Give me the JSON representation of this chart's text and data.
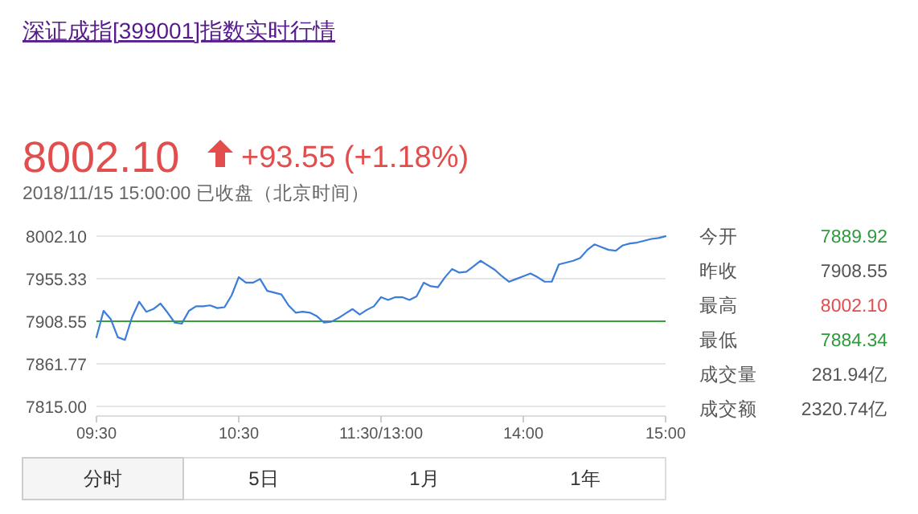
{
  "chart_data": {
    "type": "line",
    "title": "深证成指[399001]指数实时行情",
    "subtitle": "8002.10 +93.55 (+1.18%)",
    "annotations": [
      "今开 7889.92",
      "昨收 7908.55",
      "最高 8002.10",
      "最低 7884.34",
      "成交量 281.94亿",
      "成交额 2320.74亿",
      "2018/11/15 15:00:00   已收盘（北京时间）",
      "分时",
      "5日",
      "1月",
      "1年"
    ],
    "categories": [
      "09:30",
      null,
      null,
      null,
      null,
      null,
      null,
      null,
      null,
      null,
      null,
      null,
      null,
      null,
      null,
      null,
      null,
      null,
      null,
      null,
      "10:30",
      null,
      null,
      null,
      null,
      null,
      null,
      null,
      null,
      null,
      null,
      null,
      null,
      null,
      null,
      null,
      null,
      null,
      null,
      null,
      "11:30/13:00",
      null,
      null,
      null,
      null,
      null,
      null,
      null,
      null,
      null,
      null,
      null,
      null,
      null,
      null,
      null,
      null,
      null,
      null,
      null,
      "14:00",
      null,
      null,
      null,
      null,
      null,
      null,
      null,
      null,
      null,
      null,
      null,
      null,
      null,
      null,
      null,
      null,
      null,
      null,
      null,
      "15:00"
    ],
    "series": [
      {
        "color": "#3b7dd8",
        "values": [
          7891,
          7920,
          7911,
          7891,
          7888,
          7913,
          7930,
          7919,
          7922,
          7928,
          7918,
          7907,
          7906,
          7920,
          7925,
          7925,
          7926,
          7923,
          7924,
          7937,
          7957,
          7951,
          7951,
          7955,
          7942,
          7940,
          7938,
          7926,
          7918,
          7919,
          7918,
          7914,
          7907,
          7908,
          7912,
          7917,
          7922,
          7916,
          7921,
          7925,
          7935,
          7932,
          7935,
          7935,
          7932,
          7936,
          7951,
          7947,
          7946,
          7957,
          7966,
          7962,
          7963,
          7969,
          7975,
          7970,
          7965,
          7958,
          7952,
          7955,
          7958,
          7961,
          7957,
          7952,
          7952,
          7971,
          7973,
          7975,
          7978,
          7987,
          7993,
          7990,
          7987,
          7986,
          7992,
          7994,
          7995,
          7997,
          7999,
          8000,
          8002
        ]
      }
    ],
    "ylim": [
      7815,
      8002.1
    ],
    "yticks": [
      {
        "value": 7815,
        "label": "7815.00"
      },
      7861.77,
      7908.55,
      7955.33,
      {
        "value": 8002.1,
        "label": "8002.10"
      }
    ],
    "ref_lines": [
      {
        "axis": "y",
        "value": 7908.55,
        "color": "#3aa03a"
      }
    ],
    "grid": "y"
  }
}
